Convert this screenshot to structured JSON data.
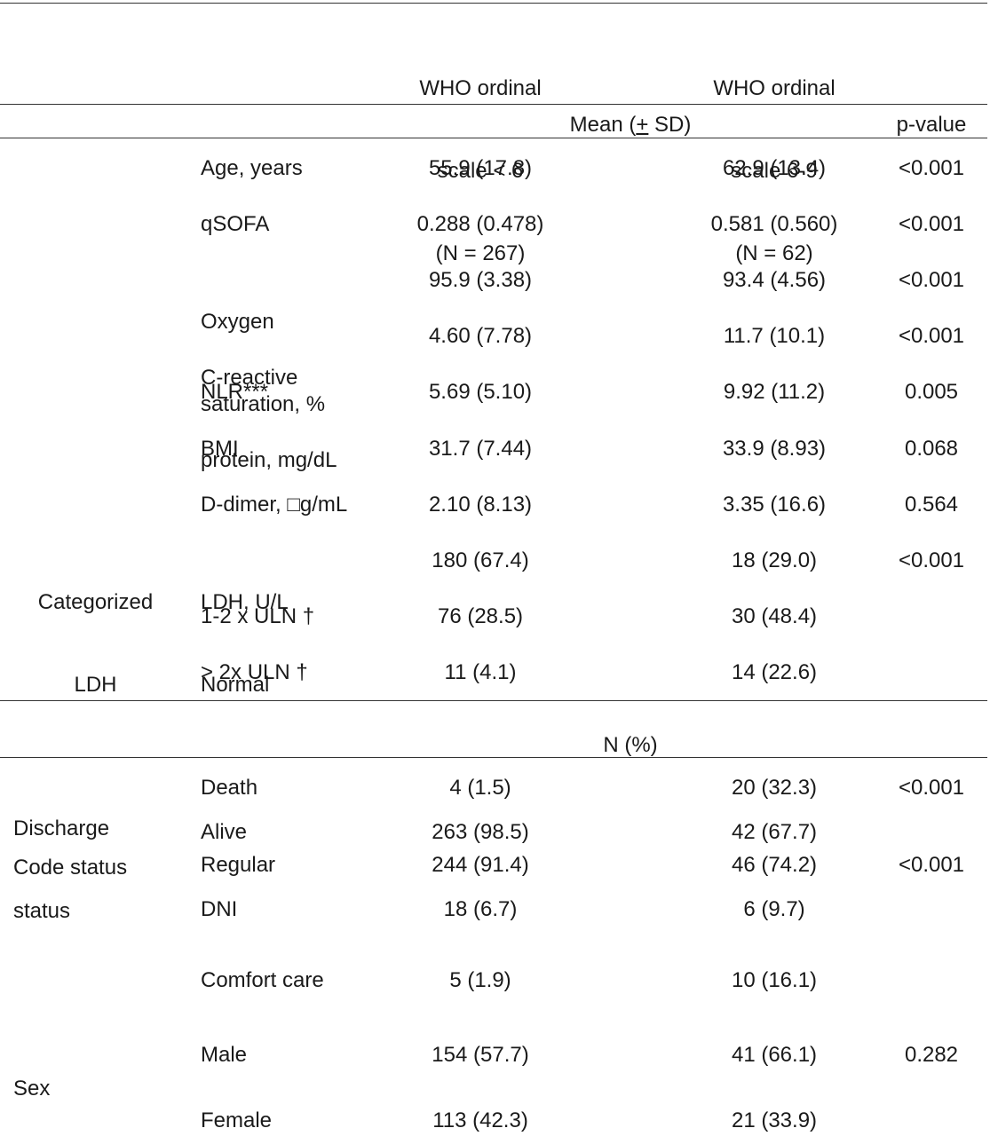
{
  "header": {
    "group_a": [
      "WHO ordinal",
      "scale < 6",
      "(N = 267)"
    ],
    "group_b": [
      "WHO ordinal",
      "scale 6-9",
      "(N = 62)"
    ]
  },
  "section_mean": {
    "label_pre": "Mean (",
    "label_pm": "+",
    "label_post": " SD)",
    "pvalue_header": "p-value"
  },
  "rows_continuous": [
    {
      "label": [
        "Age, years"
      ],
      "a": "55.9 (17.8)",
      "b": "62.9 (13.4)",
      "p": "<0.001"
    },
    {
      "label": [
        "qSOFA"
      ],
      "a": "0.288 (0.478)",
      "b": "0.581 (0.560)",
      "p": "<0.001"
    },
    {
      "label": [
        "Oxygen",
        "saturation, %"
      ],
      "a": "95.9 (3.38)",
      "b": "93.4 (4.56)",
      "p": "<0.001"
    },
    {
      "label": [
        "C-reactive",
        "protein, mg/dL"
      ],
      "a": "4.60 (7.78)",
      "b": "11.7 (10.1)",
      "p": "<0.001"
    },
    {
      "label": [
        "NLR***"
      ],
      "a": "5.69 (5.10)",
      "b": "9.92 (11.2)",
      "p": "0.005"
    },
    {
      "label": [
        "BMI"
      ],
      "a": "31.7 (7.44)",
      "b": "33.9 (8.93)",
      "p": "0.068"
    },
    {
      "label": [
        "D-dimer, □g/mL"
      ],
      "a": "2.10 (8.13)",
      "b": "3.35 (16.6)",
      "p": "0.564"
    }
  ],
  "ldh": {
    "group": [
      "Categorized",
      "LDH"
    ],
    "rows": [
      {
        "label": [
          "LDH, U/L",
          "Normal"
        ],
        "a": "180 (67.4)",
        "b": "18 (29.0)",
        "p": "<0.001"
      },
      {
        "label": [
          "1-2 x ULN †"
        ],
        "a": "76 (28.5)",
        "b": "30 (48.4)",
        "p": ""
      },
      {
        "label": [
          "> 2x ULN †"
        ],
        "a": "11 (4.1)",
        "b": "14 (22.6)",
        "p": ""
      }
    ]
  },
  "section_n": {
    "label": "N (%)"
  },
  "discharge": {
    "group": [
      "Discharge",
      "status"
    ],
    "rows": [
      {
        "label": "Death",
        "a": "4 (1.5)",
        "b": "20 (32.3)",
        "p": "<0.001"
      },
      {
        "label": "Alive",
        "a": "263 (98.5)",
        "b": "42 (67.7)",
        "p": ""
      }
    ]
  },
  "code": {
    "group": "Code status",
    "rows": [
      {
        "label": "Regular",
        "a": "244 (91.4)",
        "b": "46 (74.2)",
        "p": "<0.001"
      },
      {
        "label": "DNI",
        "a": "18 (6.7)",
        "b": "6 (9.7)",
        "p": ""
      },
      {
        "label": "Comfort care",
        "a": "5 (1.9)",
        "b": "10 (16.1)",
        "p": ""
      }
    ]
  },
  "sex": {
    "group": "Sex",
    "rows": [
      {
        "label": "Male",
        "a": "154 (57.7)",
        "b": "41 (66.1)",
        "p": "0.282"
      },
      {
        "label": "Female",
        "a": "113 (42.3)",
        "b": "21 (33.9)",
        "p": ""
      }
    ]
  }
}
